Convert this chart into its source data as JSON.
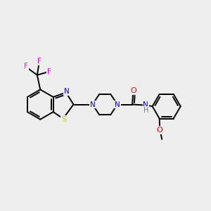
{
  "background_color": "#eeeeee",
  "figsize": [
    3.0,
    3.0
  ],
  "dpi": 100,
  "atom_colors": {
    "C": "#000000",
    "N": "#0000ee",
    "O": "#ee0000",
    "S": "#cccc00",
    "F": "#ff00ff",
    "H": "#448888"
  },
  "bond_color": "#000000",
  "bond_width": 1.4
}
